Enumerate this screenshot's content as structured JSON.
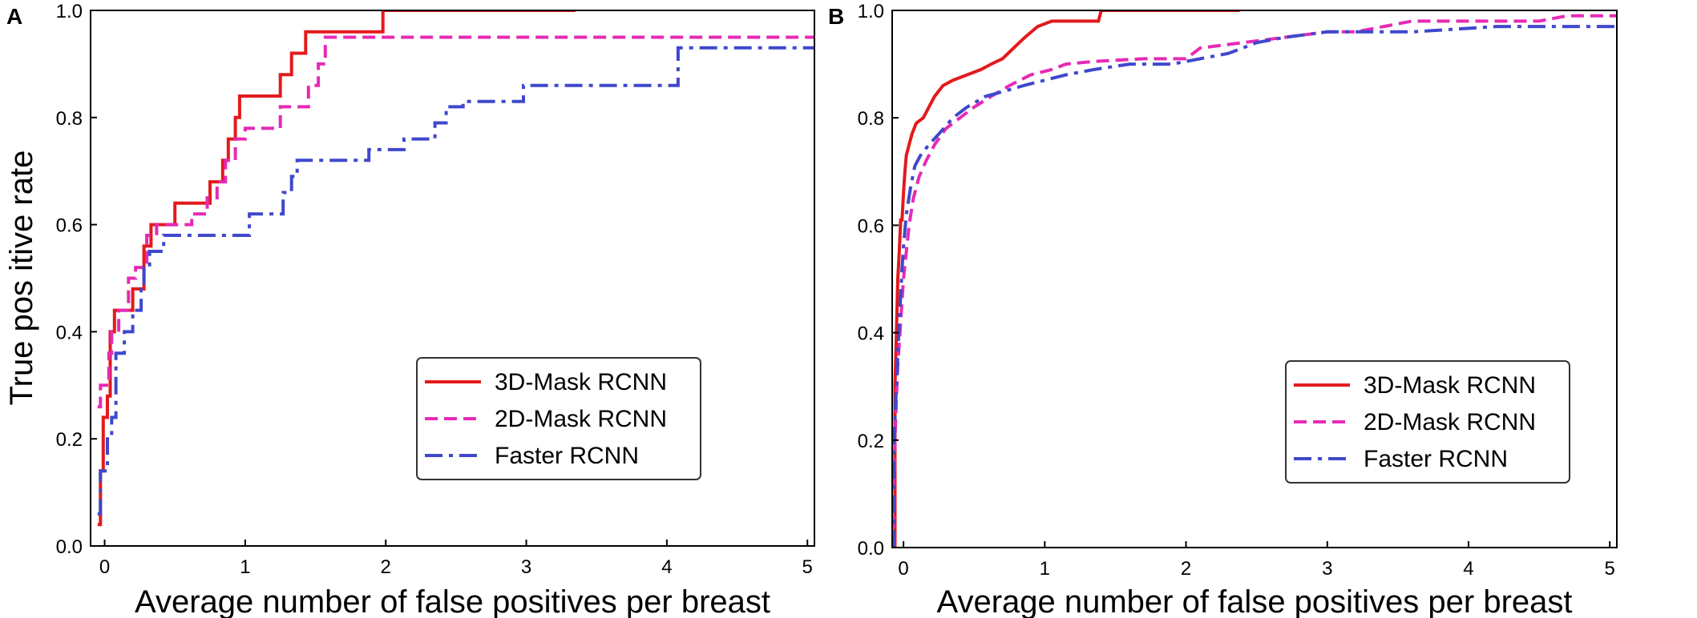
{
  "chart_data": [
    {
      "panel": "A",
      "type": "line",
      "title": "",
      "xlabel": "Average number of false positives per breast",
      "ylabel": "True pos itive rate",
      "xlim": [
        -0.1,
        5.05
      ],
      "ylim": [
        0.0,
        1.0
      ],
      "x_ticks": [
        0,
        1,
        2,
        3,
        4,
        5
      ],
      "x_tick_labels": [
        "0",
        "1",
        "2",
        "3",
        "4",
        "5"
      ],
      "y_ticks": [
        0.0,
        0.2,
        0.4,
        0.6,
        0.8,
        1.0
      ],
      "y_tick_labels": [
        "0.0",
        "0.2",
        "0.4",
        "0.6",
        "0.8",
        "1.0"
      ],
      "grid": false,
      "legend_position": "bottom-right",
      "series": [
        {
          "name": "3D-Mask RCNN",
          "color": "#e31a1c",
          "style": "solid",
          "points": [
            [
              -0.05,
              0.04
            ],
            [
              -0.03,
              0.04
            ],
            [
              -0.03,
              0.14
            ],
            [
              -0.01,
              0.14
            ],
            [
              -0.01,
              0.24
            ],
            [
              0.02,
              0.24
            ],
            [
              0.02,
              0.28
            ],
            [
              0.04,
              0.28
            ],
            [
              0.04,
              0.4
            ],
            [
              0.07,
              0.4
            ],
            [
              0.07,
              0.44
            ],
            [
              0.2,
              0.44
            ],
            [
              0.2,
              0.48
            ],
            [
              0.28,
              0.48
            ],
            [
              0.28,
              0.56
            ],
            [
              0.33,
              0.56
            ],
            [
              0.33,
              0.6
            ],
            [
              0.5,
              0.6
            ],
            [
              0.5,
              0.64
            ],
            [
              0.75,
              0.64
            ],
            [
              0.75,
              0.68
            ],
            [
              0.84,
              0.68
            ],
            [
              0.84,
              0.72
            ],
            [
              0.88,
              0.72
            ],
            [
              0.88,
              0.76
            ],
            [
              0.93,
              0.76
            ],
            [
              0.93,
              0.8
            ],
            [
              0.96,
              0.8
            ],
            [
              0.96,
              0.84
            ],
            [
              1.25,
              0.84
            ],
            [
              1.25,
              0.88
            ],
            [
              1.33,
              0.88
            ],
            [
              1.33,
              0.92
            ],
            [
              1.43,
              0.92
            ],
            [
              1.43,
              0.96
            ],
            [
              1.98,
              0.96
            ],
            [
              1.98,
              1.0
            ],
            [
              3.35,
              1.0
            ]
          ]
        },
        {
          "name": "2D-Mask RCNN",
          "color": "#e62ab5",
          "style": "dashed",
          "points": [
            [
              -0.05,
              0.26
            ],
            [
              -0.03,
              0.26
            ],
            [
              -0.03,
              0.3
            ],
            [
              0.03,
              0.3
            ],
            [
              0.03,
              0.36
            ],
            [
              0.05,
              0.36
            ],
            [
              0.05,
              0.4
            ],
            [
              0.1,
              0.4
            ],
            [
              0.1,
              0.44
            ],
            [
              0.17,
              0.44
            ],
            [
              0.17,
              0.5
            ],
            [
              0.22,
              0.5
            ],
            [
              0.22,
              0.52
            ],
            [
              0.3,
              0.52
            ],
            [
              0.3,
              0.58
            ],
            [
              0.37,
              0.58
            ],
            [
              0.37,
              0.6
            ],
            [
              0.62,
              0.6
            ],
            [
              0.62,
              0.62
            ],
            [
              0.73,
              0.62
            ],
            [
              0.73,
              0.65
            ],
            [
              0.8,
              0.65
            ],
            [
              0.8,
              0.68
            ],
            [
              0.86,
              0.68
            ],
            [
              0.86,
              0.72
            ],
            [
              0.93,
              0.72
            ],
            [
              0.93,
              0.76
            ],
            [
              1.0,
              0.76
            ],
            [
              1.0,
              0.78
            ],
            [
              1.25,
              0.78
            ],
            [
              1.25,
              0.82
            ],
            [
              1.45,
              0.82
            ],
            [
              1.45,
              0.86
            ],
            [
              1.52,
              0.86
            ],
            [
              1.52,
              0.9
            ],
            [
              1.57,
              0.9
            ],
            [
              1.57,
              0.95
            ],
            [
              5.05,
              0.95
            ]
          ]
        },
        {
          "name": "Faster RCNN",
          "color": "#3f48cc",
          "style": "dashdot",
          "points": [
            [
              -0.05,
              0.06
            ],
            [
              -0.03,
              0.06
            ],
            [
              -0.03,
              0.14
            ],
            [
              0.02,
              0.14
            ],
            [
              0.02,
              0.2
            ],
            [
              0.05,
              0.2
            ],
            [
              0.05,
              0.24
            ],
            [
              0.08,
              0.24
            ],
            [
              0.08,
              0.36
            ],
            [
              0.14,
              0.36
            ],
            [
              0.14,
              0.4
            ],
            [
              0.2,
              0.4
            ],
            [
              0.2,
              0.44
            ],
            [
              0.26,
              0.44
            ],
            [
              0.26,
              0.48
            ],
            [
              0.28,
              0.48
            ],
            [
              0.28,
              0.52
            ],
            [
              0.32,
              0.52
            ],
            [
              0.32,
              0.55
            ],
            [
              0.42,
              0.55
            ],
            [
              0.42,
              0.58
            ],
            [
              1.03,
              0.58
            ],
            [
              1.03,
              0.62
            ],
            [
              1.27,
              0.62
            ],
            [
              1.27,
              0.66
            ],
            [
              1.33,
              0.66
            ],
            [
              1.33,
              0.69
            ],
            [
              1.37,
              0.69
            ],
            [
              1.37,
              0.72
            ],
            [
              1.88,
              0.72
            ],
            [
              1.88,
              0.74
            ],
            [
              2.13,
              0.74
            ],
            [
              2.13,
              0.76
            ],
            [
              2.35,
              0.76
            ],
            [
              2.35,
              0.79
            ],
            [
              2.43,
              0.79
            ],
            [
              2.43,
              0.82
            ],
            [
              2.55,
              0.82
            ],
            [
              2.55,
              0.83
            ],
            [
              2.98,
              0.83
            ],
            [
              2.98,
              0.86
            ],
            [
              4.08,
              0.86
            ],
            [
              4.08,
              0.93
            ],
            [
              5.05,
              0.93
            ]
          ]
        }
      ]
    },
    {
      "panel": "B",
      "type": "line",
      "title": "",
      "xlabel": "Average number of false positives per breast",
      "ylabel": "",
      "xlim": [
        -0.08,
        5.05
      ],
      "ylim": [
        0.0,
        1.0
      ],
      "x_ticks": [
        0,
        1,
        2,
        3,
        4,
        5
      ],
      "x_tick_labels": [
        "0",
        "1",
        "2",
        "3",
        "4",
        "5"
      ],
      "y_ticks": [
        0.0,
        0.2,
        0.4,
        0.6,
        0.8,
        1.0
      ],
      "y_tick_labels": [
        "0.0",
        "0.2",
        "0.4",
        "0.6",
        "0.8",
        "1.0"
      ],
      "grid": false,
      "legend_position": "bottom-right",
      "series": [
        {
          "name": "3D-Mask RCNN",
          "color": "#e31a1c",
          "style": "solid",
          "points": [
            [
              -0.06,
              0.0
            ],
            [
              -0.06,
              0.3
            ],
            [
              -0.05,
              0.4
            ],
            [
              -0.04,
              0.5
            ],
            [
              -0.03,
              0.55
            ],
            [
              -0.02,
              0.61
            ],
            [
              -0.01,
              0.61
            ],
            [
              0.0,
              0.66
            ],
            [
              0.01,
              0.7
            ],
            [
              0.02,
              0.73
            ],
            [
              0.04,
              0.75
            ],
            [
              0.06,
              0.77
            ],
            [
              0.09,
              0.79
            ],
            [
              0.14,
              0.8
            ],
            [
              0.18,
              0.82
            ],
            [
              0.22,
              0.84
            ],
            [
              0.28,
              0.86
            ],
            [
              0.35,
              0.87
            ],
            [
              0.45,
              0.88
            ],
            [
              0.55,
              0.89
            ],
            [
              0.62,
              0.9
            ],
            [
              0.7,
              0.91
            ],
            [
              0.78,
              0.93
            ],
            [
              0.86,
              0.95
            ],
            [
              0.95,
              0.97
            ],
            [
              1.05,
              0.98
            ],
            [
              1.38,
              0.98
            ],
            [
              1.4,
              1.0
            ],
            [
              2.38,
              1.0
            ]
          ]
        },
        {
          "name": "2D-Mask RCNN",
          "color": "#e62ab5",
          "style": "dashed",
          "points": [
            [
              -0.07,
              0.0
            ],
            [
              -0.07,
              0.12
            ],
            [
              -0.06,
              0.2
            ],
            [
              -0.05,
              0.28
            ],
            [
              -0.04,
              0.34
            ],
            [
              -0.03,
              0.38
            ],
            [
              -0.02,
              0.42
            ],
            [
              -0.01,
              0.46
            ],
            [
              0.0,
              0.5
            ],
            [
              0.02,
              0.55
            ],
            [
              0.04,
              0.6
            ],
            [
              0.07,
              0.65
            ],
            [
              0.11,
              0.69
            ],
            [
              0.16,
              0.72
            ],
            [
              0.22,
              0.75
            ],
            [
              0.3,
              0.78
            ],
            [
              0.4,
              0.8
            ],
            [
              0.5,
              0.82
            ],
            [
              0.62,
              0.84
            ],
            [
              0.75,
              0.86
            ],
            [
              0.9,
              0.88
            ],
            [
              1.05,
              0.89
            ],
            [
              1.15,
              0.9
            ],
            [
              1.35,
              0.905
            ],
            [
              1.7,
              0.91
            ],
            [
              2.0,
              0.91
            ],
            [
              2.1,
              0.93
            ],
            [
              2.4,
              0.94
            ],
            [
              2.7,
              0.95
            ],
            [
              3.0,
              0.96
            ],
            [
              3.2,
              0.96
            ],
            [
              3.4,
              0.97
            ],
            [
              3.6,
              0.98
            ],
            [
              4.5,
              0.98
            ],
            [
              4.7,
              0.99
            ],
            [
              5.05,
              0.99
            ]
          ]
        },
        {
          "name": "Faster RCNN",
          "color": "#3f48cc",
          "style": "dashdot",
          "points": [
            [
              -0.07,
              0.0
            ],
            [
              -0.07,
              0.18
            ],
            [
              -0.06,
              0.24
            ],
            [
              -0.05,
              0.3
            ],
            [
              -0.04,
              0.36
            ],
            [
              -0.03,
              0.42
            ],
            [
              -0.02,
              0.47
            ],
            [
              -0.01,
              0.52
            ],
            [
              0.0,
              0.56
            ],
            [
              0.02,
              0.62
            ],
            [
              0.05,
              0.67
            ],
            [
              0.08,
              0.71
            ],
            [
              0.12,
              0.73
            ],
            [
              0.18,
              0.75
            ],
            [
              0.25,
              0.77
            ],
            [
              0.35,
              0.8
            ],
            [
              0.45,
              0.82
            ],
            [
              0.58,
              0.84
            ],
            [
              0.72,
              0.85
            ],
            [
              0.85,
              0.86
            ],
            [
              1.0,
              0.87
            ],
            [
              1.15,
              0.88
            ],
            [
              1.35,
              0.89
            ],
            [
              1.6,
              0.9
            ],
            [
              1.9,
              0.9
            ],
            [
              2.1,
              0.91
            ],
            [
              2.3,
              0.92
            ],
            [
              2.5,
              0.94
            ],
            [
              2.7,
              0.95
            ],
            [
              3.0,
              0.96
            ],
            [
              3.3,
              0.96
            ],
            [
              3.6,
              0.96
            ],
            [
              3.9,
              0.965
            ],
            [
              4.2,
              0.97
            ],
            [
              5.05,
              0.97
            ]
          ]
        }
      ]
    }
  ]
}
